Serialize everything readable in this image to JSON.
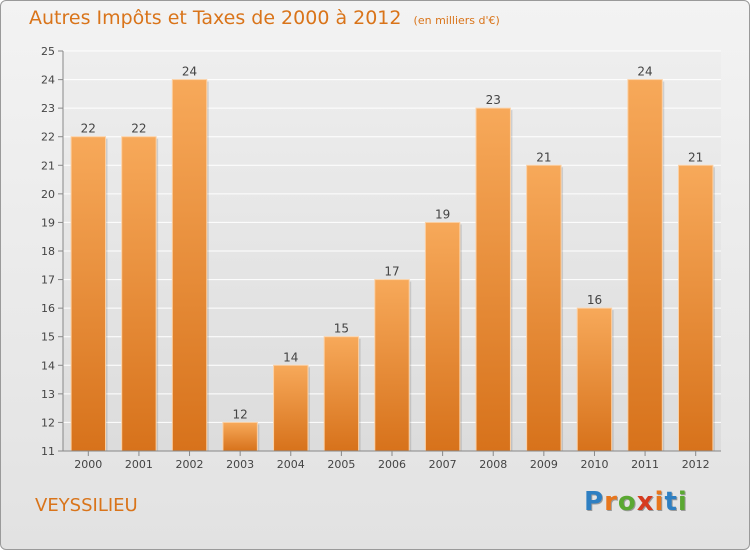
{
  "header": {
    "title": "Autres Impôts et Taxes de 2000 à 2012",
    "subtitle": "(en milliers d'€)"
  },
  "footer": {
    "commune": "VEYSSILIEU",
    "logo_letters": [
      "P",
      "r",
      "o",
      "x",
      "i",
      "t",
      "i"
    ],
    "logo_colors": [
      "#2e7fc2",
      "#e8761c",
      "#5aa832",
      "#d63b1f",
      "#e8761c",
      "#2e7fc2",
      "#5aa832"
    ]
  },
  "colors": {
    "bar_top": "#f7a95a",
    "bar_bottom": "#d7721b",
    "axis_text": "#444444",
    "grid": "#ffffff",
    "title": "#d9741a"
  },
  "chart_data": {
    "type": "bar",
    "title": "Autres Impôts et Taxes de 2000 à 2012",
    "subtitle": "(en milliers d'€)",
    "categories": [
      "2000",
      "2001",
      "2002",
      "2003",
      "2004",
      "2005",
      "2006",
      "2007",
      "2008",
      "2009",
      "2010",
      "2011",
      "2012"
    ],
    "values": [
      22,
      22,
      24,
      12,
      14,
      15,
      17,
      19,
      23,
      21,
      16,
      24,
      21
    ],
    "ylim": [
      11,
      25
    ],
    "yticks": [
      11,
      12,
      13,
      14,
      15,
      16,
      17,
      18,
      19,
      20,
      21,
      22,
      23,
      24,
      25
    ],
    "grid": true,
    "xlabel": "",
    "ylabel": ""
  }
}
